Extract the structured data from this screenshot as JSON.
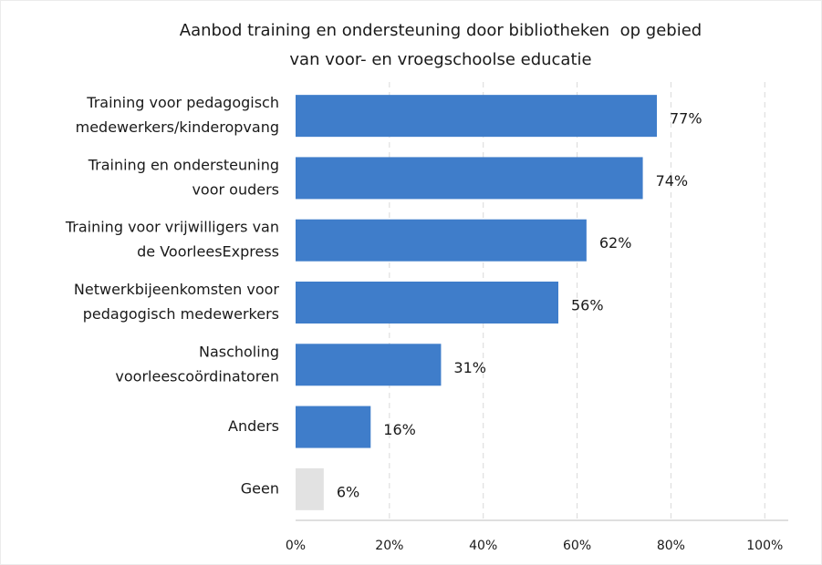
{
  "chart_data": {
    "type": "bar",
    "orientation": "horizontal",
    "title": [
      "Aanbod training en ondersteuning door bibliotheken  op gebied",
      "van voor- en vroegschoolse educatie"
    ],
    "categories": [
      [
        "Training voor pedagogisch",
        "medewerkers/kinderopvang"
      ],
      [
        "Training en ondersteuning",
        "voor ouders"
      ],
      [
        "Training voor vrijwilligers van",
        "de VoorleesExpress"
      ],
      [
        "Netwerkbijeenkomsten voor",
        "pedagogisch medewerkers"
      ],
      [
        "Nascholing",
        "voorleescoördinatoren"
      ],
      [
        "Anders"
      ],
      [
        "Geen"
      ]
    ],
    "values": [
      77,
      74,
      62,
      56,
      31,
      16,
      6
    ],
    "value_labels": [
      "77%",
      "74%",
      "62%",
      "56%",
      "31%",
      "16%",
      "6%"
    ],
    "colors": [
      "#3f7dca",
      "#3f7dca",
      "#3f7dca",
      "#3f7dca",
      "#3f7dca",
      "#3f7dca",
      "#e2e2e2"
    ],
    "xlim": [
      0,
      105
    ],
    "xticks": [
      {
        "value": 0,
        "label": "0%"
      },
      {
        "value": 20,
        "label": "20%"
      },
      {
        "value": 40,
        "label": "40%"
      },
      {
        "value": 60,
        "label": "60%"
      },
      {
        "value": 80,
        "label": "80%"
      },
      {
        "value": 100,
        "label": "100%"
      }
    ],
    "grid": true
  }
}
